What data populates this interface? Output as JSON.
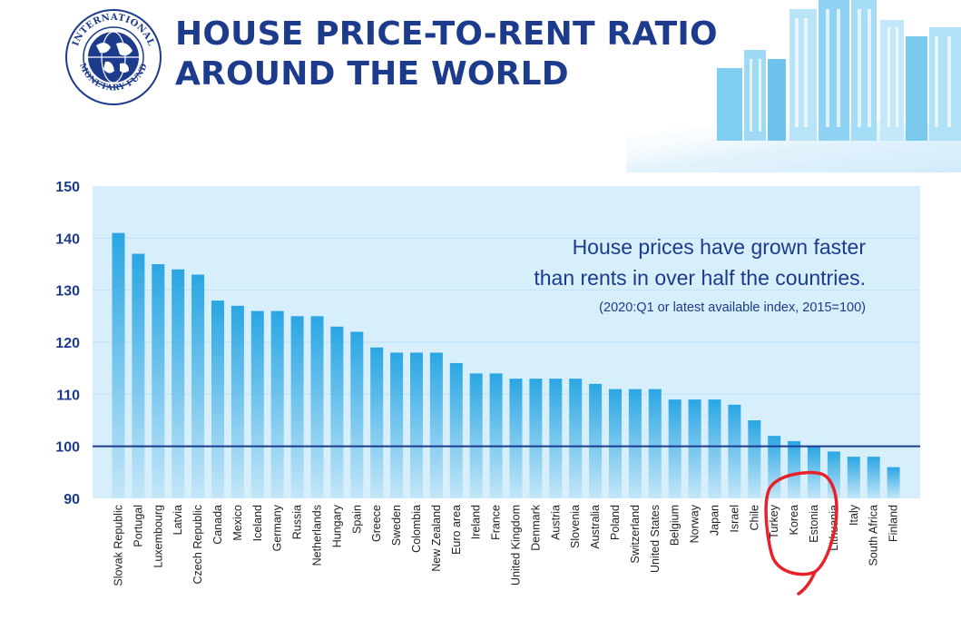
{
  "header": {
    "title_line1": "HOUSE PRICE-TO-RENT RATIO",
    "title_line2": "AROUND THE WORLD",
    "logo_icon": "imf-seal-icon",
    "logo_ring_top": "INTERNATIONAL",
    "logo_ring_bottom": "MONETARY FUND"
  },
  "colors": {
    "title": "#1d3b8c",
    "plot_bg": "#d7eefb",
    "bar_top": "#2aa6e3",
    "bar_bottom": "#c3e6f8",
    "baseline": "#1d3b8c",
    "highlight": "#e8222a"
  },
  "annotation": {
    "line1": "House prices have grown faster",
    "line2": "than rents in over half the countries.",
    "line3": "(2020:Q1 or latest available index, 2015=100)"
  },
  "chart_data": {
    "type": "bar",
    "categories": [
      "Slovak Republic",
      "Portugal",
      "Luxembourg",
      "Latvia",
      "Czech Republic",
      "Canada",
      "Mexico",
      "Iceland",
      "Germany",
      "Russia",
      "Netherlands",
      "Hungary",
      "Spain",
      "Greece",
      "Sweden",
      "Colombia",
      "New Zealand",
      "Euro area",
      "Ireland",
      "France",
      "United Kingdom",
      "Denmark",
      "Austria",
      "Slovenia",
      "Australia",
      "Poland",
      "Switzerland",
      "United States",
      "Belgium",
      "Norway",
      "Japan",
      "Israel",
      "Chile",
      "Turkey",
      "Korea",
      "Estonia",
      "Lithuania",
      "Italy",
      "South Africa",
      "Finland"
    ],
    "values": [
      141,
      137,
      135,
      134,
      133,
      128,
      127,
      126,
      126,
      125,
      125,
      123,
      122,
      119,
      118,
      118,
      118,
      116,
      114,
      114,
      113,
      113,
      113,
      113,
      112,
      111,
      111,
      111,
      109,
      109,
      109,
      108,
      105,
      102,
      101,
      100,
      99,
      98,
      98,
      96
    ],
    "ylim": [
      90,
      150
    ],
    "yticks": [
      90,
      100,
      110,
      120,
      130,
      140,
      150
    ],
    "reference_line": 100,
    "grid": true,
    "highlighted_categories": [
      "Turkey",
      "Korea",
      "Estonia"
    ]
  }
}
